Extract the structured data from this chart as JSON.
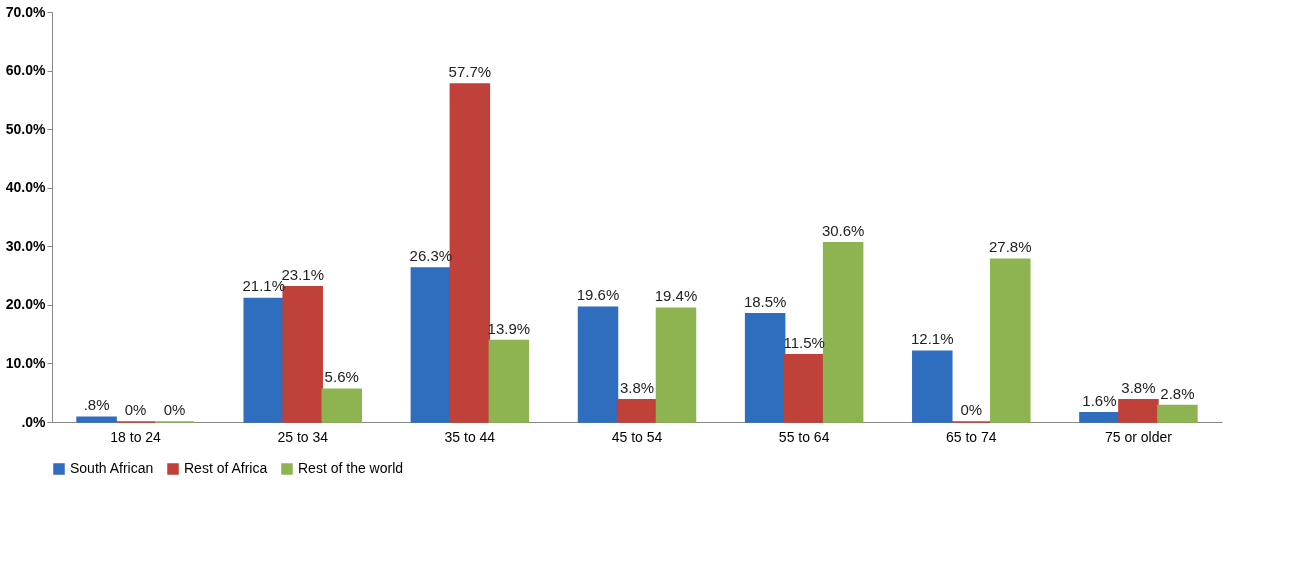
{
  "chart_data": {
    "type": "bar",
    "categories": [
      "18 to 24",
      "25 to 34",
      "35 to 44",
      "45 to 54",
      "55 to 64",
      "65 to 74",
      "75 or older"
    ],
    "series": [
      {
        "name": "South African",
        "color": "#2f6ebf",
        "values": [
          0.8,
          21.1,
          26.3,
          19.6,
          18.5,
          12.1,
          1.6
        ],
        "value_labels": [
          ".8%",
          "21.1%",
          "26.3%",
          "19.6%",
          "18.5%",
          "12.1%",
          "1.6%"
        ]
      },
      {
        "name": "Rest of Africa",
        "color": "#c0403a",
        "values": [
          0,
          23.1,
          57.7,
          3.8,
          11.5,
          0,
          3.8
        ],
        "value_labels": [
          "0%",
          "23.1%",
          "57.7%",
          "3.8%",
          "11.5%",
          "0%",
          "3.8%"
        ]
      },
      {
        "name": "Rest of the world",
        "color": "#8db450",
        "values": [
          0,
          5.6,
          13.9,
          19.4,
          30.6,
          27.8,
          2.8
        ],
        "value_labels": [
          "0%",
          "5.6%",
          "13.9%",
          "19.4%",
          "30.6%",
          "27.8%",
          "2.8%"
        ]
      }
    ],
    "ylim": [
      0,
      70
    ],
    "yticks": [
      {
        "value": 0,
        "label": ".0%"
      },
      {
        "value": 10,
        "label": "10.0%"
      },
      {
        "value": 20,
        "label": "20.0%"
      },
      {
        "value": 30,
        "label": "30.0%"
      },
      {
        "value": 40,
        "label": "40.0%"
      },
      {
        "value": 50,
        "label": "50.0%"
      },
      {
        "value": 60,
        "label": "60.0%"
      },
      {
        "value": 70,
        "label": "70.0%"
      }
    ],
    "grid": false,
    "legend": "bottom"
  }
}
